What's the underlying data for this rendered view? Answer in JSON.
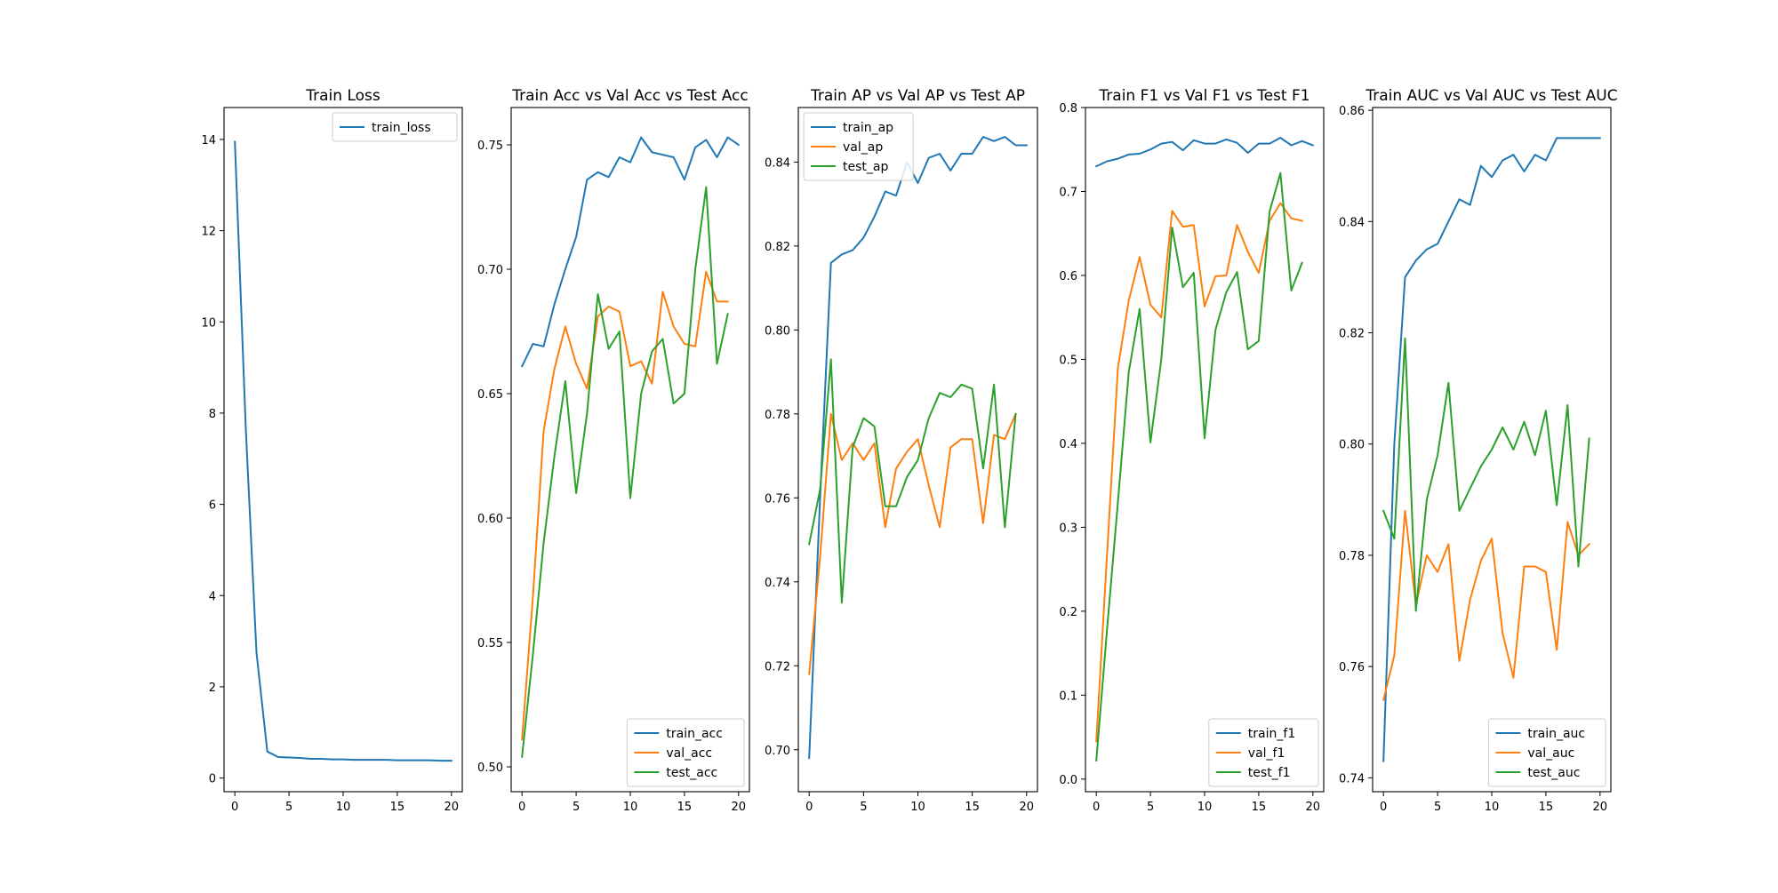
{
  "figure": {
    "background": "#ffffff",
    "colors": {
      "blue": "#1f77b4",
      "orange": "#ff7f0e",
      "green": "#2ca02c"
    }
  },
  "chart_data": [
    {
      "type": "line",
      "title": "Train Loss",
      "xlabel": "",
      "ylabel": "",
      "xlim": [
        -1,
        21
      ],
      "ylim": [
        -0.3,
        14.7
      ],
      "xticks": [
        0,
        5,
        10,
        15,
        20
      ],
      "yticks": [
        0,
        2,
        4,
        6,
        8,
        10,
        12,
        14
      ],
      "ytick_labels": [
        "0",
        "2",
        "4",
        "6",
        "8",
        "10",
        "12",
        "14"
      ],
      "legend": "top-right",
      "grid": false,
      "series": [
        {
          "name": "train_loss",
          "color": "#1f77b4",
          "x": [
            0,
            1,
            2,
            3,
            4,
            5,
            6,
            7,
            8,
            9,
            10,
            11,
            12,
            13,
            14,
            15,
            16,
            17,
            18,
            19,
            20
          ],
          "y": [
            13.95,
            7.7,
            2.75,
            0.58,
            0.46,
            0.45,
            0.44,
            0.42,
            0.42,
            0.41,
            0.41,
            0.4,
            0.4,
            0.4,
            0.4,
            0.39,
            0.39,
            0.39,
            0.39,
            0.38,
            0.38
          ]
        }
      ]
    },
    {
      "type": "line",
      "title": "Train Acc vs Val Acc vs Test Acc",
      "xlabel": "",
      "ylabel": "",
      "xlim": [
        -1,
        21
      ],
      "ylim": [
        0.49,
        0.765
      ],
      "xticks": [
        0,
        5,
        10,
        15,
        20
      ],
      "yticks": [
        0.5,
        0.55,
        0.6,
        0.65,
        0.7,
        0.75
      ],
      "ytick_labels": [
        "0.50",
        "0.55",
        "0.60",
        "0.65",
        "0.70",
        "0.75"
      ],
      "legend": "bottom-right",
      "grid": false,
      "series": [
        {
          "name": "train_acc",
          "color": "#1f77b4",
          "x": [
            0,
            1,
            2,
            3,
            4,
            5,
            6,
            7,
            8,
            9,
            10,
            11,
            12,
            13,
            14,
            15,
            16,
            17,
            18,
            19,
            20
          ],
          "y": [
            0.661,
            0.67,
            0.669,
            0.686,
            0.7,
            0.713,
            0.736,
            0.739,
            0.737,
            0.745,
            0.743,
            0.753,
            0.747,
            0.746,
            0.745,
            0.736,
            0.749,
            0.752,
            0.745,
            0.753,
            0.75
          ]
        },
        {
          "name": "val_acc",
          "color": "#ff7f0e",
          "x": [
            0,
            1,
            2,
            3,
            4,
            5,
            6,
            7,
            8,
            9,
            10,
            11,
            12,
            13,
            14,
            15,
            16,
            17,
            18,
            19
          ],
          "y": [
            0.511,
            0.568,
            0.635,
            0.66,
            0.677,
            0.662,
            0.652,
            0.681,
            0.685,
            0.683,
            0.661,
            0.663,
            0.654,
            0.691,
            0.677,
            0.67,
            0.669,
            0.699,
            0.687,
            0.687
          ]
        },
        {
          "name": "test_acc",
          "color": "#2ca02c",
          "x": [
            0,
            1,
            2,
            3,
            4,
            5,
            6,
            7,
            8,
            9,
            10,
            11,
            12,
            13,
            14,
            15,
            16,
            17,
            18,
            19
          ],
          "y": [
            0.504,
            0.545,
            0.59,
            0.625,
            0.655,
            0.61,
            0.642,
            0.69,
            0.668,
            0.675,
            0.608,
            0.65,
            0.667,
            0.672,
            0.646,
            0.65,
            0.7,
            0.733,
            0.662,
            0.682
          ]
        }
      ]
    },
    {
      "type": "line",
      "title": "Train AP vs Val AP vs Test AP",
      "xlabel": "",
      "ylabel": "",
      "xlim": [
        -1,
        21
      ],
      "ylim": [
        0.69,
        0.853
      ],
      "xticks": [
        0,
        5,
        10,
        15,
        20
      ],
      "yticks": [
        0.7,
        0.72,
        0.74,
        0.76,
        0.78,
        0.8,
        0.82,
        0.84
      ],
      "ytick_labels": [
        "0.70",
        "0.72",
        "0.74",
        "0.76",
        "0.78",
        "0.80",
        "0.82",
        "0.84"
      ],
      "legend": "top-left",
      "grid": false,
      "series": [
        {
          "name": "train_ap",
          "color": "#1f77b4",
          "x": [
            0,
            1,
            2,
            3,
            4,
            5,
            6,
            7,
            8,
            9,
            10,
            11,
            12,
            13,
            14,
            15,
            16,
            17,
            18,
            19,
            20
          ],
          "y": [
            0.698,
            0.76,
            0.816,
            0.818,
            0.819,
            0.822,
            0.827,
            0.833,
            0.832,
            0.84,
            0.835,
            0.841,
            0.842,
            0.838,
            0.842,
            0.842,
            0.846,
            0.845,
            0.846,
            0.844,
            0.844
          ]
        },
        {
          "name": "val_ap",
          "color": "#ff7f0e",
          "x": [
            0,
            1,
            2,
            3,
            4,
            5,
            6,
            7,
            8,
            9,
            10,
            11,
            12,
            13,
            14,
            15,
            16,
            17,
            18,
            19
          ],
          "y": [
            0.718,
            0.746,
            0.78,
            0.769,
            0.773,
            0.769,
            0.773,
            0.753,
            0.767,
            0.771,
            0.774,
            0.763,
            0.753,
            0.772,
            0.774,
            0.774,
            0.754,
            0.775,
            0.774,
            0.78
          ]
        },
        {
          "name": "test_ap",
          "color": "#2ca02c",
          "x": [
            0,
            1,
            2,
            3,
            4,
            5,
            6,
            7,
            8,
            9,
            10,
            11,
            12,
            13,
            14,
            15,
            16,
            17,
            18,
            19
          ],
          "y": [
            0.749,
            0.762,
            0.793,
            0.735,
            0.772,
            0.779,
            0.777,
            0.758,
            0.758,
            0.765,
            0.769,
            0.779,
            0.785,
            0.784,
            0.787,
            0.786,
            0.767,
            0.787,
            0.753,
            0.78
          ]
        }
      ]
    },
    {
      "type": "line",
      "title": "Train F1 vs Val F1 vs Test F1",
      "xlabel": "",
      "ylabel": "",
      "xlim": [
        -1,
        21
      ],
      "ylim": [
        -0.015,
        0.8
      ],
      "xticks": [
        0,
        5,
        10,
        15,
        20
      ],
      "yticks": [
        0.0,
        0.1,
        0.2,
        0.3,
        0.4,
        0.5,
        0.6,
        0.7,
        0.8
      ],
      "ytick_labels": [
        "0.0",
        "0.1",
        "0.2",
        "0.3",
        "0.4",
        "0.5",
        "0.6",
        "0.7",
        "0.8"
      ],
      "legend": "bottom-right",
      "grid": false,
      "series": [
        {
          "name": "train_f1",
          "color": "#1f77b4",
          "x": [
            0,
            1,
            2,
            3,
            4,
            5,
            6,
            7,
            8,
            9,
            10,
            11,
            12,
            13,
            14,
            15,
            16,
            17,
            18,
            19,
            20
          ],
          "y": [
            0.73,
            0.736,
            0.739,
            0.744,
            0.745,
            0.75,
            0.757,
            0.759,
            0.749,
            0.761,
            0.757,
            0.757,
            0.762,
            0.758,
            0.746,
            0.757,
            0.757,
            0.764,
            0.755,
            0.76,
            0.755
          ]
        },
        {
          "name": "val_f1",
          "color": "#ff7f0e",
          "x": [
            0,
            1,
            2,
            3,
            4,
            5,
            6,
            7,
            8,
            9,
            10,
            11,
            12,
            13,
            14,
            15,
            16,
            17,
            18,
            19
          ],
          "y": [
            0.045,
            0.27,
            0.49,
            0.57,
            0.622,
            0.565,
            0.55,
            0.677,
            0.658,
            0.66,
            0.563,
            0.599,
            0.6,
            0.66,
            0.628,
            0.603,
            0.665,
            0.686,
            0.668,
            0.665
          ]
        },
        {
          "name": "test_f1",
          "color": "#2ca02c",
          "x": [
            0,
            1,
            2,
            3,
            4,
            5,
            6,
            7,
            8,
            9,
            10,
            11,
            12,
            13,
            14,
            15,
            16,
            17,
            18,
            19
          ],
          "y": [
            0.022,
            0.18,
            0.33,
            0.485,
            0.56,
            0.401,
            0.5,
            0.657,
            0.586,
            0.603,
            0.406,
            0.535,
            0.58,
            0.604,
            0.512,
            0.522,
            0.676,
            0.722,
            0.582,
            0.615
          ]
        }
      ]
    },
    {
      "type": "line",
      "title": "Train AUC vs Val AUC vs Test AUC",
      "xlabel": "",
      "ylabel": "",
      "xlim": [
        -1,
        21
      ],
      "ylim": [
        0.7375,
        0.8605
      ],
      "xticks": [
        0,
        5,
        10,
        15,
        20
      ],
      "yticks": [
        0.74,
        0.76,
        0.78,
        0.8,
        0.82,
        0.84,
        0.86
      ],
      "ytick_labels": [
        "0.74",
        "0.76",
        "0.78",
        "0.80",
        "0.82",
        "0.84",
        "0.86"
      ],
      "legend": "bottom-right",
      "grid": false,
      "series": [
        {
          "name": "train_auc",
          "color": "#1f77b4",
          "x": [
            0,
            1,
            2,
            3,
            4,
            5,
            6,
            7,
            8,
            9,
            10,
            11,
            12,
            13,
            14,
            15,
            16,
            17,
            18,
            19,
            20
          ],
          "y": [
            0.743,
            0.8,
            0.83,
            0.833,
            0.835,
            0.836,
            0.84,
            0.844,
            0.843,
            0.85,
            0.848,
            0.851,
            0.852,
            0.849,
            0.852,
            0.851,
            0.855,
            0.855,
            0.855,
            0.855,
            0.855
          ]
        },
        {
          "name": "val_auc",
          "color": "#ff7f0e",
          "x": [
            0,
            1,
            2,
            3,
            4,
            5,
            6,
            7,
            8,
            9,
            10,
            11,
            12,
            13,
            14,
            15,
            16,
            17,
            18,
            19
          ],
          "y": [
            0.754,
            0.762,
            0.788,
            0.771,
            0.78,
            0.777,
            0.782,
            0.761,
            0.772,
            0.779,
            0.783,
            0.766,
            0.758,
            0.778,
            0.778,
            0.777,
            0.763,
            0.786,
            0.78,
            0.782
          ]
        },
        {
          "name": "test_auc",
          "color": "#2ca02c",
          "x": [
            0,
            1,
            2,
            3,
            4,
            5,
            6,
            7,
            8,
            9,
            10,
            11,
            12,
            13,
            14,
            15,
            16,
            17,
            18,
            19
          ],
          "y": [
            0.788,
            0.783,
            0.819,
            0.77,
            0.79,
            0.798,
            0.811,
            0.788,
            0.792,
            0.796,
            0.799,
            0.803,
            0.799,
            0.804,
            0.798,
            0.806,
            0.789,
            0.807,
            0.778,
            0.801
          ]
        }
      ]
    }
  ]
}
